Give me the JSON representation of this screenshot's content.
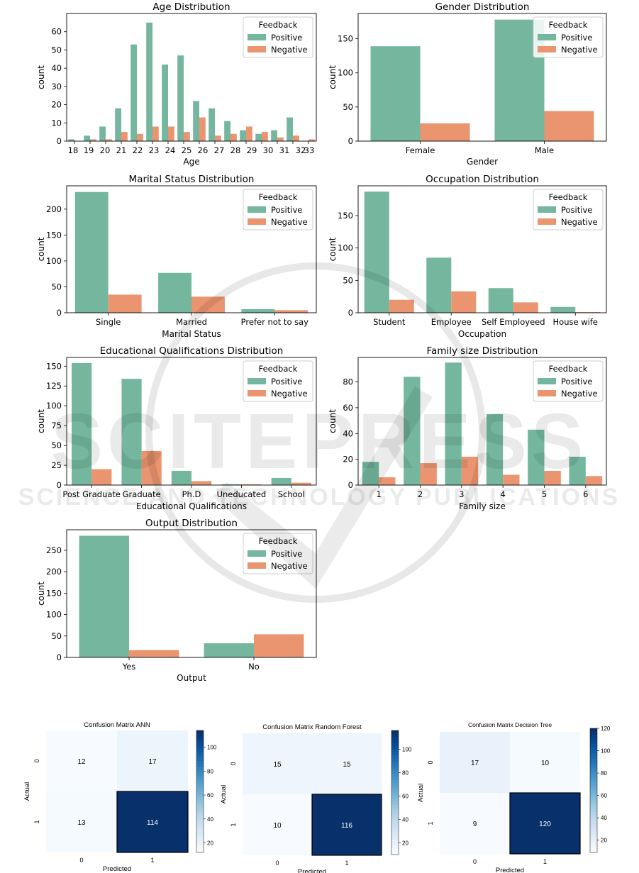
{
  "colors": {
    "positive": "#74b69e",
    "negative": "#ea9470",
    "axis": "#000000"
  },
  "legend": {
    "title": "Feedback",
    "positive": "Positive",
    "negative": "Negative"
  },
  "ylabel": "count",
  "watermark": {
    "brand": "SCITEPRESS",
    "tagline": "SCIENCE AND TECHNOLOGY PUBLICATIONS"
  },
  "chart_data": [
    {
      "type": "bar",
      "title": "Age Distribution",
      "xlabel": "Age",
      "ylabel": "count",
      "categories": [
        "18",
        "19",
        "20",
        "21",
        "22",
        "23",
        "24",
        "25",
        "26",
        "27",
        "28",
        "29",
        "30",
        "31",
        "32",
        "33"
      ],
      "series": [
        {
          "name": "Positive",
          "values": [
            1,
            3,
            8,
            18,
            53,
            65,
            42,
            47,
            22,
            18,
            11,
            6,
            4,
            6,
            13,
            0
          ]
        },
        {
          "name": "Negative",
          "values": [
            0,
            1,
            1,
            5,
            4,
            8,
            8,
            5,
            13,
            3,
            4,
            8,
            5,
            2,
            3,
            1
          ]
        }
      ],
      "ylim": [
        0,
        70
      ],
      "yticks": [
        0,
        10,
        20,
        30,
        40,
        50,
        60
      ],
      "legend_position": "top-right"
    },
    {
      "type": "bar",
      "title": "Gender Distribution",
      "xlabel": "Gender",
      "ylabel": "count",
      "categories": [
        "Female",
        "Male"
      ],
      "series": [
        {
          "name": "Positive",
          "values": [
            139,
            178
          ]
        },
        {
          "name": "Negative",
          "values": [
            26,
            44
          ]
        }
      ],
      "ylim": [
        0,
        187
      ],
      "yticks": [
        0,
        50,
        100,
        150
      ],
      "legend_position": "top-right"
    },
    {
      "type": "bar",
      "title": "Marital Status Distribution",
      "xlabel": "Marital Status",
      "ylabel": "count",
      "categories": [
        "Single",
        "Married",
        "Prefer not to say"
      ],
      "series": [
        {
          "name": "Positive",
          "values": [
            233,
            77,
            7
          ]
        },
        {
          "name": "Negative",
          "values": [
            35,
            31,
            5
          ]
        }
      ],
      "ylim": [
        0,
        245
      ],
      "yticks": [
        0,
        50,
        100,
        150,
        200
      ],
      "legend_position": "top-right"
    },
    {
      "type": "bar",
      "title": "Occupation Distribution",
      "xlabel": "Occupation",
      "ylabel": "count",
      "categories": [
        "Student",
        "Employee",
        "Self Employeed",
        "House wife"
      ],
      "series": [
        {
          "name": "Positive",
          "values": [
            187,
            85,
            38,
            9
          ]
        },
        {
          "name": "Negative",
          "values": [
            20,
            33,
            16,
            1
          ]
        }
      ],
      "ylim": [
        0,
        196
      ],
      "yticks": [
        0,
        50,
        100,
        150
      ],
      "legend_position": "top-right"
    },
    {
      "type": "bar",
      "title": "Educational Qualifications Distribution",
      "xlabel": "Educational Qualifications",
      "ylabel": "count",
      "categories": [
        "Post Graduate",
        "Graduate",
        "Ph.D",
        "Uneducated",
        "School"
      ],
      "series": [
        {
          "name": "Positive",
          "values": [
            154,
            134,
            18,
            1,
            9
          ]
        },
        {
          "name": "Negative",
          "values": [
            20,
            43,
            5,
            1,
            3
          ]
        }
      ],
      "ylim": [
        0,
        161
      ],
      "yticks": [
        0,
        25,
        50,
        75,
        100,
        125,
        150
      ],
      "legend_position": "top-right"
    },
    {
      "type": "bar",
      "title": "Family size Distribution",
      "xlabel": "Family size",
      "ylabel": "count",
      "categories": [
        "1",
        "2",
        "3",
        "4",
        "5",
        "6"
      ],
      "series": [
        {
          "name": "Positive",
          "values": [
            18,
            84,
            95,
            55,
            43,
            22
          ]
        },
        {
          "name": "Negative",
          "values": [
            6,
            17,
            22,
            8,
            11,
            7
          ]
        }
      ],
      "ylim": [
        0,
        99
      ],
      "yticks": [
        0,
        20,
        40,
        60,
        80
      ],
      "legend_position": "top-right"
    },
    {
      "type": "bar",
      "title": "Output Distribution",
      "xlabel": "Output",
      "ylabel": "count",
      "categories": [
        "Yes",
        "No"
      ],
      "series": [
        {
          "name": "Positive",
          "values": [
            284,
            33
          ]
        },
        {
          "name": "Negative",
          "values": [
            17,
            54
          ]
        }
      ],
      "ylim": [
        0,
        298
      ],
      "yticks": [
        0,
        50,
        100,
        150,
        200,
        250
      ],
      "legend_position": "top-right"
    },
    {
      "type": "heatmap",
      "title": "Confusion Matrix ANN",
      "xlabel": "Predicted",
      "ylabel": "Actual",
      "x": [
        "0",
        "1"
      ],
      "y": [
        "0",
        "1"
      ],
      "values": [
        [
          12,
          17
        ],
        [
          13,
          114
        ]
      ],
      "colorbar_ticks": [
        20,
        40,
        60,
        80,
        100
      ],
      "colorscale": "Blues"
    },
    {
      "type": "heatmap",
      "title": "Confusion Matrix Random Forest",
      "xlabel": "Predicted",
      "ylabel": "Actual",
      "x": [
        "0",
        "1"
      ],
      "y": [
        "0",
        "1"
      ],
      "values": [
        [
          15,
          15
        ],
        [
          10,
          116
        ]
      ],
      "colorbar_ticks": [
        20,
        40,
        60,
        80,
        100
      ],
      "colorscale": "Blues"
    },
    {
      "type": "heatmap",
      "title": "Confusion Matrix Decision Tree",
      "xlabel": "Predicted",
      "ylabel": "Actual",
      "x": [
        "0",
        "1"
      ],
      "y": [
        "0",
        "1"
      ],
      "values": [
        [
          17,
          10
        ],
        [
          9,
          120
        ]
      ],
      "colorbar_ticks": [
        20,
        40,
        60,
        80,
        100,
        120
      ],
      "colorscale": "Blues"
    }
  ]
}
